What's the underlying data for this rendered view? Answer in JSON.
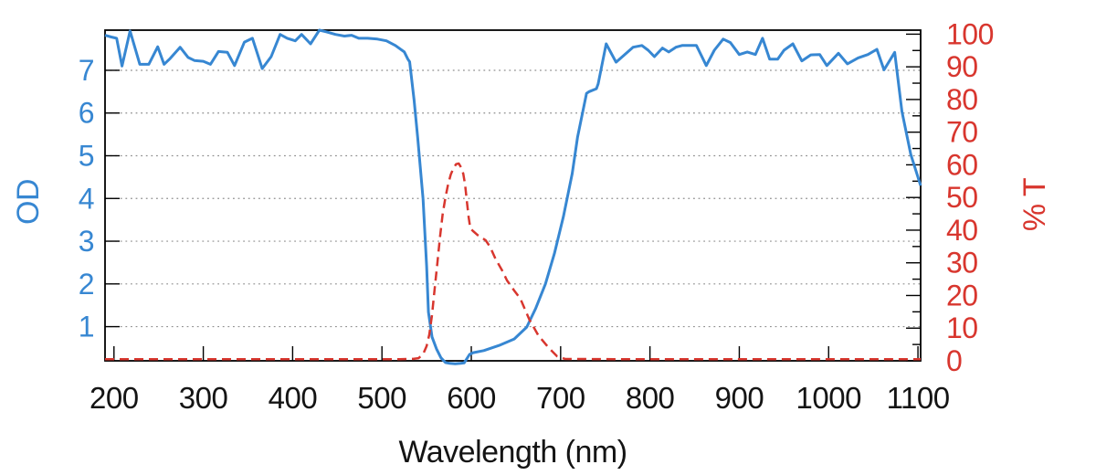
{
  "chart_data": {
    "type": "line",
    "title": "",
    "xlabel": "Wavelength (nm)",
    "x_axis": {
      "min": 190,
      "max": 1103,
      "ticks": [
        200,
        300,
        400,
        500,
        600,
        700,
        800,
        900,
        1000,
        1100
      ]
    },
    "left_axis": {
      "label": "OD",
      "color": "#3787d2",
      "min": 0.2,
      "max": 7.94,
      "ticks": [
        1,
        2,
        3,
        4,
        5,
        6,
        7
      ]
    },
    "right_axis": {
      "label": "% T",
      "color": "#d8362e",
      "min": 0,
      "max": 100,
      "ticks": [
        0,
        10,
        20,
        30,
        40,
        50,
        60,
        70,
        80,
        90,
        100
      ],
      "minor_tick_step": 5
    },
    "grid": {
      "horizontal": "dotted gray lines at each left-axis (OD) integer tick",
      "vertical": "none",
      "color": "#8f8f8f"
    },
    "legend": "none",
    "frame": {
      "color": "#000000",
      "box": true
    },
    "series": [
      {
        "name": "OD",
        "axis": "left",
        "color": "#3787d2",
        "line_style": "solid",
        "points": [
          [
            190,
            7.82
          ],
          [
            197,
            7.78
          ],
          [
            203,
            7.75
          ],
          [
            209,
            7.1
          ],
          [
            218,
            7.92
          ],
          [
            229,
            7.14
          ],
          [
            239,
            7.14
          ],
          [
            249,
            7.55
          ],
          [
            256,
            7.14
          ],
          [
            263,
            7.28
          ],
          [
            274,
            7.54
          ],
          [
            283,
            7.3
          ],
          [
            290,
            7.23
          ],
          [
            300,
            7.21
          ],
          [
            308,
            7.14
          ],
          [
            317,
            7.44
          ],
          [
            327,
            7.42
          ],
          [
            335,
            7.11
          ],
          [
            346,
            7.66
          ],
          [
            355,
            7.75
          ],
          [
            366,
            7.04
          ],
          [
            376,
            7.32
          ],
          [
            386,
            7.84
          ],
          [
            394,
            7.75
          ],
          [
            403,
            7.69
          ],
          [
            410,
            7.84
          ],
          [
            420,
            7.62
          ],
          [
            430,
            7.94
          ],
          [
            438,
            7.9
          ],
          [
            448,
            7.84
          ],
          [
            458,
            7.8
          ],
          [
            466,
            7.82
          ],
          [
            474,
            7.75
          ],
          [
            484,
            7.75
          ],
          [
            495,
            7.73
          ],
          [
            505,
            7.69
          ],
          [
            515,
            7.58
          ],
          [
            525,
            7.43
          ],
          [
            529,
            7.26
          ],
          [
            531,
            7.2
          ],
          [
            536,
            6.3
          ],
          [
            540,
            5.43
          ],
          [
            546,
            3.99
          ],
          [
            550,
            2.42
          ],
          [
            552,
            1.34
          ],
          [
            556,
            0.76
          ],
          [
            561,
            0.48
          ],
          [
            566,
            0.27
          ],
          [
            571,
            0.16
          ],
          [
            576,
            0.14
          ],
          [
            582,
            0.13
          ],
          [
            588,
            0.14
          ],
          [
            592,
            0.15
          ],
          [
            598,
            0.35
          ],
          [
            602,
            0.39
          ],
          [
            614,
            0.44
          ],
          [
            631,
            0.56
          ],
          [
            648,
            0.71
          ],
          [
            662,
            0.99
          ],
          [
            672,
            1.42
          ],
          [
            683,
            2.0
          ],
          [
            693,
            2.71
          ],
          [
            703,
            3.57
          ],
          [
            713,
            4.58
          ],
          [
            719,
            5.44
          ],
          [
            729,
            6.46
          ],
          [
            732,
            6.5
          ],
          [
            740,
            6.57
          ],
          [
            742,
            6.68
          ],
          [
            751,
            7.62
          ],
          [
            762,
            7.19
          ],
          [
            781,
            7.54
          ],
          [
            791,
            7.58
          ],
          [
            798,
            7.47
          ],
          [
            805,
            7.32
          ],
          [
            814,
            7.52
          ],
          [
            821,
            7.43
          ],
          [
            829,
            7.54
          ],
          [
            836,
            7.58
          ],
          [
            852,
            7.58
          ],
          [
            863,
            7.11
          ],
          [
            872,
            7.47
          ],
          [
            882,
            7.73
          ],
          [
            890,
            7.65
          ],
          [
            900,
            7.37
          ],
          [
            909,
            7.43
          ],
          [
            918,
            7.37
          ],
          [
            926,
            7.75
          ],
          [
            934,
            7.26
          ],
          [
            943,
            7.26
          ],
          [
            950,
            7.47
          ],
          [
            960,
            7.62
          ],
          [
            970,
            7.22
          ],
          [
            980,
            7.36
          ],
          [
            990,
            7.37
          ],
          [
            998,
            7.11
          ],
          [
            1011,
            7.4
          ],
          [
            1021,
            7.15
          ],
          [
            1033,
            7.29
          ],
          [
            1044,
            7.37
          ],
          [
            1054,
            7.49
          ],
          [
            1062,
            7.01
          ],
          [
            1074,
            7.42
          ],
          [
            1082,
            6.04
          ],
          [
            1092,
            5.03
          ],
          [
            1103,
            4.3
          ]
        ]
      },
      {
        "name": "% T",
        "axis": "right",
        "color": "#d8362e",
        "line_style": "dashed",
        "points": [
          [
            190,
            0.5
          ],
          [
            300,
            0.5
          ],
          [
            400,
            0.5
          ],
          [
            480,
            0.5
          ],
          [
            520,
            0.5
          ],
          [
            535,
            0.6
          ],
          [
            541,
            0.8
          ],
          [
            546,
            2.0
          ],
          [
            550,
            4.5
          ],
          [
            553,
            8.0
          ],
          [
            556,
            14.0
          ],
          [
            559,
            22.0
          ],
          [
            562,
            30.0
          ],
          [
            565,
            38.0
          ],
          [
            568,
            45.0
          ],
          [
            571,
            50.0
          ],
          [
            574,
            54.0
          ],
          [
            577,
            57.0
          ],
          [
            580,
            59.0
          ],
          [
            583,
            60.2
          ],
          [
            586,
            60.4
          ],
          [
            589,
            59.0
          ],
          [
            591,
            57.3
          ],
          [
            593,
            54.0
          ],
          [
            595,
            49.0
          ],
          [
            597,
            44.0
          ],
          [
            599,
            40.5
          ],
          [
            602,
            39.7
          ],
          [
            607,
            38.5
          ],
          [
            616,
            36.9
          ],
          [
            621,
            34.9
          ],
          [
            627,
            31.3
          ],
          [
            635,
            27.4
          ],
          [
            640,
            24.6
          ],
          [
            648,
            21.5
          ],
          [
            655,
            19.0
          ],
          [
            665,
            12.6
          ],
          [
            675,
            7.8
          ],
          [
            686,
            4.2
          ],
          [
            696,
            1.4
          ],
          [
            705,
            0.6
          ],
          [
            760,
            0.5
          ],
          [
            850,
            0.5
          ],
          [
            950,
            0.5
          ],
          [
            1050,
            0.5
          ],
          [
            1103,
            0.5
          ]
        ]
      }
    ]
  }
}
